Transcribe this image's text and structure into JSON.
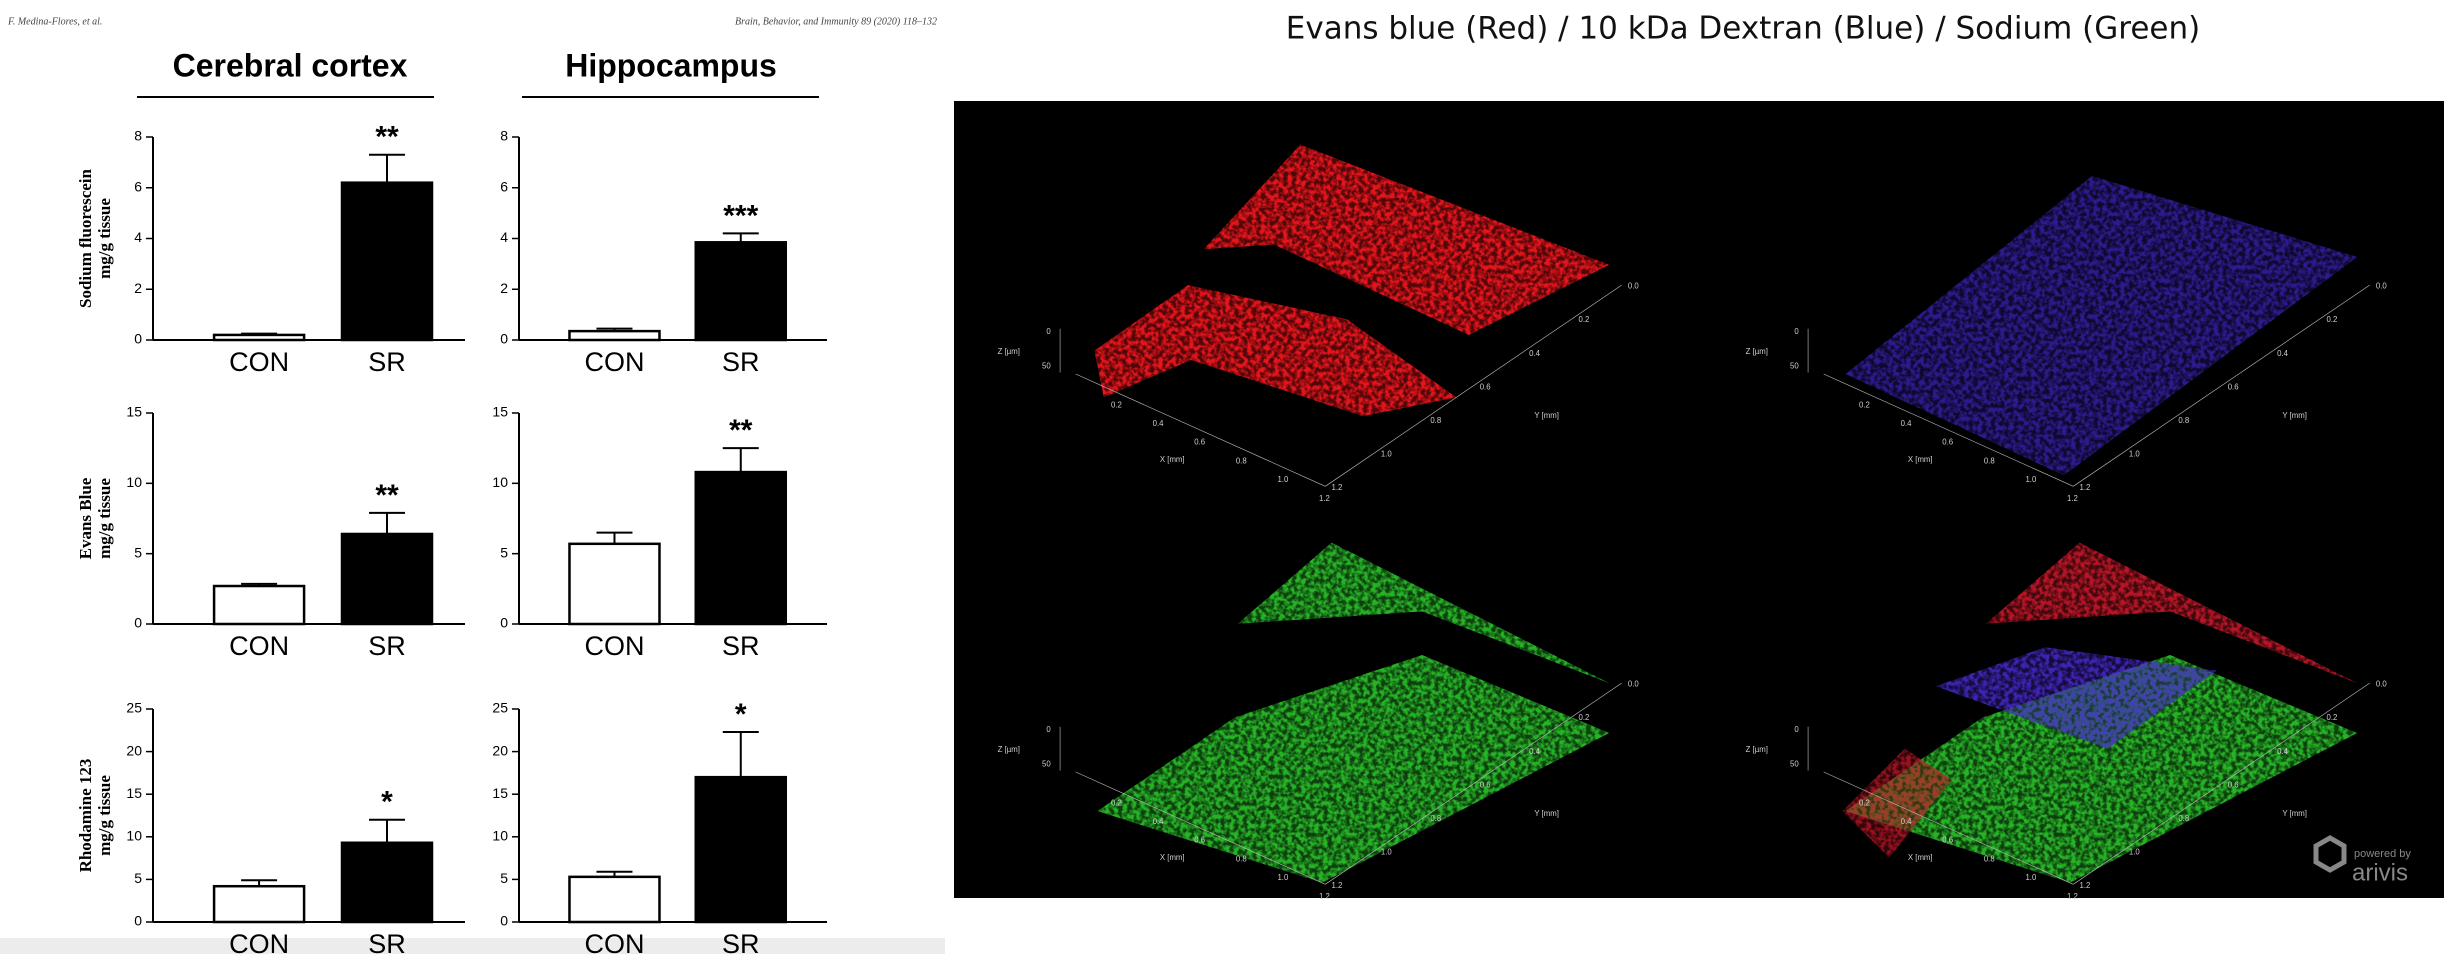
{
  "header": {
    "author": "F. Medina-Flores, et al.",
    "journal": "Brain, Behavior, and Immunity 89 (2020) 118–132"
  },
  "figure": {
    "column_titles": [
      "Cerebral cortex",
      "Hippocampus"
    ]
  },
  "chart_data": [
    {
      "type": "bar",
      "y_label": [
        "Sodium fluorescein",
        "mg/g tissue"
      ],
      "categories": [
        "CON",
        "SR"
      ],
      "values": [
        0.2,
        6.2
      ],
      "errors": [
        0.05,
        1.1
      ],
      "significance": "**",
      "colors": [
        "#ffffff",
        "#000000"
      ],
      "ylim": [
        0,
        8
      ],
      "yticks": [
        0,
        2,
        4,
        6,
        8
      ]
    },
    {
      "type": "bar",
      "categories": [
        "CON",
        "SR"
      ],
      "values": [
        0.35,
        3.85
      ],
      "errors": [
        0.1,
        0.35
      ],
      "significance": "***",
      "colors": [
        "#ffffff",
        "#000000"
      ],
      "ylim": [
        0,
        8
      ],
      "yticks": [
        0,
        2,
        4,
        6,
        8
      ]
    },
    {
      "type": "bar",
      "y_label": [
        "Evans Blue",
        "mg/g tissue"
      ],
      "categories": [
        "CON",
        "SR"
      ],
      "values": [
        2.7,
        6.4
      ],
      "errors": [
        0.15,
        1.5
      ],
      "significance": "**",
      "colors": [
        "#ffffff",
        "#000000"
      ],
      "ylim": [
        0,
        15
      ],
      "yticks": [
        0,
        5,
        10,
        15
      ]
    },
    {
      "type": "bar",
      "categories": [
        "CON",
        "SR"
      ],
      "values": [
        5.7,
        10.8
      ],
      "errors": [
        0.8,
        1.7
      ],
      "significance": "**",
      "colors": [
        "#ffffff",
        "#000000"
      ],
      "ylim": [
        0,
        15
      ],
      "yticks": [
        0,
        5,
        10,
        15
      ]
    },
    {
      "type": "bar",
      "y_label": [
        "Rhodamine 123",
        "mg/g tissue"
      ],
      "categories": [
        "CON",
        "SR"
      ],
      "values": [
        4.2,
        9.3
      ],
      "errors": [
        0.7,
        2.7
      ],
      "significance": "*",
      "colors": [
        "#ffffff",
        "#000000"
      ],
      "ylim": [
        0,
        25
      ],
      "yticks": [
        0,
        5,
        10,
        15,
        20,
        25
      ]
    },
    {
      "type": "bar",
      "categories": [
        "CON",
        "SR"
      ],
      "values": [
        5.3,
        17
      ],
      "errors": [
        0.6,
        5.3
      ],
      "significance": "*",
      "colors": [
        "#ffffff",
        "#000000"
      ],
      "ylim": [
        0,
        25
      ],
      "yticks": [
        0,
        5,
        10,
        15,
        20,
        25
      ]
    }
  ],
  "right_panel": {
    "title": "Evans blue (Red) / 10 kDa Dextran (Blue) / Sodium (Green)",
    "renders": [
      {
        "color": "#e3141b"
      },
      {
        "color": "#3b23b8"
      },
      {
        "color": "#27b427"
      },
      {
        "colors": [
          "#27b427",
          "#c8182a",
          "#4a2ad0"
        ]
      }
    ],
    "render_axes": {
      "x_label": "X [mm]",
      "y_label": "Y [mm]",
      "z_label": "Z [µm]",
      "x_ticks": [
        "0.2",
        "0.4",
        "0.6",
        "0.8",
        "1.0",
        "1.2"
      ],
      "y_ticks": [
        "0.0",
        "0.2",
        "0.4",
        "0.6",
        "0.8",
        "1.0",
        "1.2"
      ],
      "z_ticks": [
        "0",
        "50"
      ]
    },
    "logo": {
      "tagline": "powered by",
      "brand": "arivis"
    }
  }
}
